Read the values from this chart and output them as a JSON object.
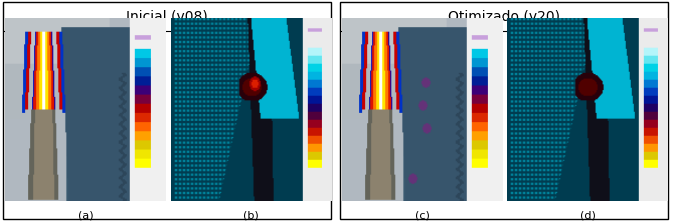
{
  "title_left": "Inicial (v08)",
  "title_right": "Otimizado (v20)",
  "labels": [
    "(a)",
    "(b)",
    "(c)",
    "(d)"
  ],
  "label_fontsize": 8,
  "title_fontsize": 10,
  "fig_width": 6.73,
  "fig_height": 2.23,
  "dpi": 100,
  "bg_color": "#ffffff",
  "gray_bg": "#b0b8c0",
  "dark_blue_bg": "#3a5a70",
  "mid_blue": "#607890",
  "dark_gray": "#606870",
  "cbar_liquid": [
    "#cc99ff",
    "#ffff00",
    "#ffdd00",
    "#ffaa00",
    "#ff6600",
    "#ff2200",
    "#cc0000",
    "#880000",
    "#440088",
    "#0000aa",
    "#0055bb",
    "#00aacc",
    "#00ccdd"
  ],
  "cbar_strain": [
    "#cc99ff",
    "#ffff00",
    "#ffcc00",
    "#ff8800",
    "#ff4400",
    "#cc0000",
    "#880000",
    "#440044",
    "#000088",
    "#0022aa",
    "#0055cc",
    "#0088dd",
    "#00aaee",
    "#00ccff",
    "#00eeff",
    "#88ffff"
  ]
}
